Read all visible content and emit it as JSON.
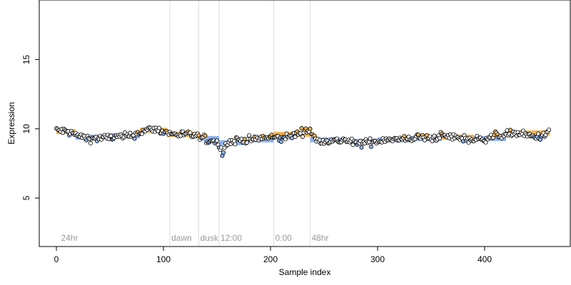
{
  "chart_data": {
    "type": "scatter",
    "title": "",
    "xlabel": "Sample index",
    "ylabel": "Expression",
    "xlim": [
      -16,
      480
    ],
    "ylim": [
      1.5,
      19.3
    ],
    "xticks": [
      0,
      100,
      200,
      300,
      400
    ],
    "yticks": [
      5,
      10,
      15
    ],
    "xtick_labels": [
      "0",
      "100",
      "200",
      "300",
      "400"
    ],
    "ytick_labels": [
      "5",
      "10",
      "15"
    ],
    "grid": false,
    "n_points": 461,
    "annotations": [
      {
        "x": 3,
        "label": "24hr",
        "line": false
      },
      {
        "x": 106,
        "label": "dawn",
        "line": true
      },
      {
        "x": 133,
        "label": "dusk",
        "line": true
      },
      {
        "x": 152,
        "label": "12:00",
        "line": true
      },
      {
        "x": 203,
        "label": "0:00",
        "line": true
      },
      {
        "x": 237,
        "label": "48hr",
        "line": true
      }
    ],
    "bars": [
      {
        "x0": 0,
        "x1": 18,
        "y": 9.8,
        "color": "#f5b451"
      },
      {
        "x0": 18,
        "x1": 48,
        "y": 9.4,
        "color": "#8fb3f0"
      },
      {
        "x0": 48,
        "x1": 78,
        "y": 9.5,
        "color": "#8fb3f0"
      },
      {
        "x0": 78,
        "x1": 103,
        "y": 9.9,
        "color": "#f5b451"
      },
      {
        "x0": 103,
        "x1": 133,
        "y": 9.6,
        "color": "#f5b451"
      },
      {
        "x0": 133,
        "x1": 152,
        "y": 9.3,
        "color": "#8fb3f0"
      },
      {
        "x0": 152,
        "x1": 178,
        "y": 9.0,
        "color": "#8fb3f0"
      },
      {
        "x0": 178,
        "x1": 203,
        "y": 9.2,
        "color": "#8fb3f0"
      },
      {
        "x0": 203,
        "x1": 237,
        "y": 9.6,
        "color": "#f5b451"
      },
      {
        "x0": 237,
        "x1": 270,
        "y": 9.2,
        "color": "#8fb3f0"
      },
      {
        "x0": 270,
        "x1": 300,
        "y": 9.1,
        "color": "#8fb3f0"
      },
      {
        "x0": 300,
        "x1": 330,
        "y": 9.2,
        "color": "#8fb3f0"
      },
      {
        "x0": 330,
        "x1": 360,
        "y": 9.3,
        "color": "#8fb3f0"
      },
      {
        "x0": 360,
        "x1": 390,
        "y": 9.4,
        "color": "#f5b451"
      },
      {
        "x0": 390,
        "x1": 420,
        "y": 9.3,
        "color": "#8fb3f0"
      },
      {
        "x0": 420,
        "x1": 461,
        "y": 9.7,
        "color": "#f5b451"
      }
    ],
    "trend": [
      [
        0,
        9.9
      ],
      [
        10,
        9.8
      ],
      [
        20,
        9.5
      ],
      [
        30,
        9.3
      ],
      [
        40,
        9.3
      ],
      [
        50,
        9.4
      ],
      [
        60,
        9.4
      ],
      [
        70,
        9.5
      ],
      [
        80,
        9.8
      ],
      [
        90,
        10.0
      ],
      [
        100,
        9.8
      ],
      [
        110,
        9.6
      ],
      [
        120,
        9.6
      ],
      [
        130,
        9.5
      ],
      [
        140,
        9.2
      ],
      [
        150,
        9.1
      ],
      [
        155,
        8.7
      ],
      [
        160,
        9.0
      ],
      [
        170,
        9.2
      ],
      [
        180,
        9.2
      ],
      [
        190,
        9.3
      ],
      [
        200,
        9.4
      ],
      [
        210,
        9.3
      ],
      [
        220,
        9.5
      ],
      [
        230,
        9.8
      ],
      [
        237,
        9.9
      ],
      [
        243,
        9.1
      ],
      [
        250,
        9.2
      ],
      [
        260,
        9.1
      ],
      [
        270,
        9.2
      ],
      [
        280,
        8.9
      ],
      [
        290,
        9.0
      ],
      [
        300,
        9.1
      ],
      [
        310,
        9.3
      ],
      [
        320,
        9.2
      ],
      [
        330,
        9.3
      ],
      [
        340,
        9.4
      ],
      [
        350,
        9.3
      ],
      [
        360,
        9.5
      ],
      [
        370,
        9.4
      ],
      [
        380,
        9.3
      ],
      [
        390,
        9.2
      ],
      [
        400,
        9.3
      ],
      [
        410,
        9.5
      ],
      [
        420,
        9.6
      ],
      [
        430,
        9.7
      ],
      [
        440,
        9.5
      ],
      [
        450,
        9.4
      ],
      [
        460,
        9.7
      ]
    ],
    "point_fill_colors": {
      "above": "#f5b451",
      "below": "#8fb3f0",
      "default": "#ffffff"
    },
    "point_stroke_color": "#000000"
  }
}
